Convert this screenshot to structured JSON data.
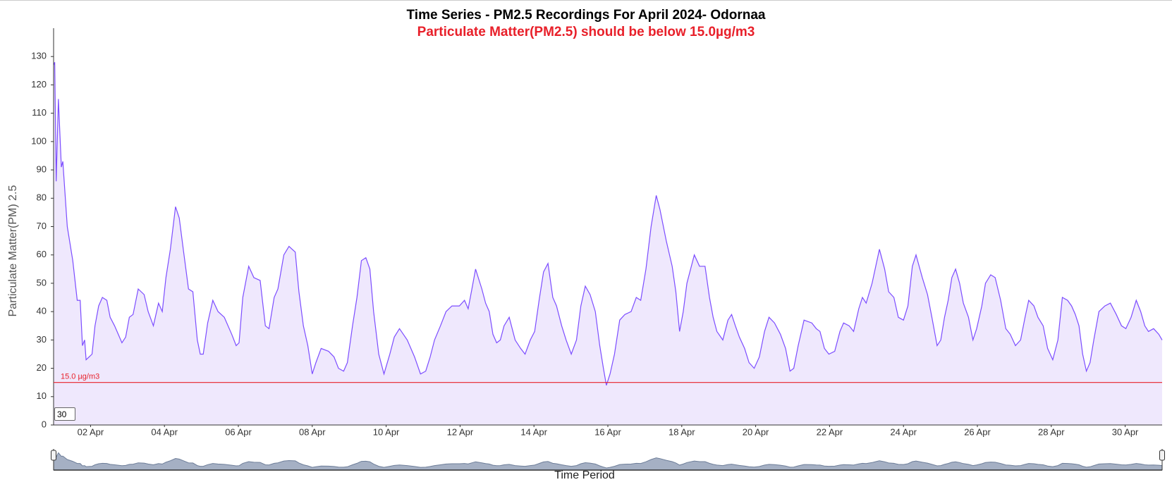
{
  "chart_data": {
    "type": "area",
    "title": "Time Series - PM2.5 Recordings For April 2024- Odornaa",
    "subtitle": "Particulate Matter(PM2.5) should be below 15.0µg/m3",
    "y_label": "Particulate Matter(PM) 2.5",
    "x_label": "Time Period",
    "threshold": {
      "value": 15,
      "label": "15.0 µg/m3"
    },
    "range_input": "30",
    "color": "#7c4dff",
    "fill_color": "#efe8fd",
    "threshold_color": "#e8202a",
    "navigator_color": "#a5b0c4",
    "ylim": [
      0,
      140
    ],
    "yticks": [
      0,
      10,
      20,
      30,
      40,
      50,
      60,
      70,
      80,
      90,
      100,
      110,
      120,
      130
    ],
    "xlim": [
      1,
      31
    ],
    "xticks": [
      {
        "value": 2,
        "label": "02 Apr"
      },
      {
        "value": 4,
        "label": "04 Apr"
      },
      {
        "value": 6,
        "label": "06 Apr"
      },
      {
        "value": 8,
        "label": "08 Apr"
      },
      {
        "value": 10,
        "label": "10 Apr"
      },
      {
        "value": 12,
        "label": "12 Apr"
      },
      {
        "value": 14,
        "label": "14 Apr"
      },
      {
        "value": 16,
        "label": "16 Apr"
      },
      {
        "value": 18,
        "label": "18 Apr"
      },
      {
        "value": 20,
        "label": "20 Apr"
      },
      {
        "value": 22,
        "label": "22 Apr"
      },
      {
        "value": 24,
        "label": "24 Apr"
      },
      {
        "value": 26,
        "label": "26 Apr"
      },
      {
        "value": 28,
        "label": "28 Apr"
      },
      {
        "value": 30,
        "label": "30 Apr"
      }
    ],
    "grid": false,
    "x": [
      1.0,
      1.03,
      1.07,
      1.13,
      1.21,
      1.25,
      1.37,
      1.52,
      1.64,
      1.72,
      1.78,
      1.84,
      1.88,
      2.04,
      2.12,
      2.22,
      2.32,
      2.44,
      2.53,
      2.65,
      2.75,
      2.85,
      2.95,
      3.05,
      3.15,
      3.29,
      3.45,
      3.56,
      3.7,
      3.84,
      3.94,
      4.04,
      4.16,
      4.3,
      4.4,
      4.51,
      4.65,
      4.77,
      4.89,
      4.97,
      5.05,
      5.17,
      5.31,
      5.45,
      5.62,
      5.82,
      5.94,
      6.02,
      6.12,
      6.28,
      6.42,
      6.59,
      6.73,
      6.83,
      6.97,
      7.07,
      7.23,
      7.37,
      7.54,
      7.64,
      7.76,
      7.88,
      8.0,
      8.1,
      8.24,
      8.44,
      8.59,
      8.71,
      8.85,
      8.95,
      9.09,
      9.21,
      9.33,
      9.45,
      9.56,
      9.66,
      9.8,
      9.94,
      10.1,
      10.22,
      10.36,
      10.57,
      10.77,
      10.93,
      11.07,
      11.19,
      11.31,
      11.47,
      11.62,
      11.78,
      11.98,
      12.12,
      12.22,
      12.32,
      12.42,
      12.59,
      12.69,
      12.79,
      12.89,
      12.99,
      13.09,
      13.19,
      13.33,
      13.49,
      13.64,
      13.76,
      13.9,
      14.02,
      14.14,
      14.26,
      14.38,
      14.51,
      14.61,
      14.75,
      14.87,
      15.01,
      15.15,
      15.27,
      15.39,
      15.52,
      15.66,
      15.78,
      15.88,
      15.96,
      16.06,
      16.18,
      16.32,
      16.46,
      16.63,
      16.77,
      16.89,
      17.03,
      17.17,
      17.31,
      17.41,
      17.58,
      17.74,
      17.84,
      17.94,
      18.04,
      18.14,
      18.34,
      18.48,
      18.63,
      18.75,
      18.85,
      18.95,
      19.11,
      19.25,
      19.35,
      19.45,
      19.56,
      19.7,
      19.82,
      19.96,
      20.1,
      20.24,
      20.36,
      20.51,
      20.67,
      20.81,
      20.93,
      21.03,
      21.15,
      21.31,
      21.52,
      21.64,
      21.74,
      21.86,
      21.98,
      22.14,
      22.28,
      22.38,
      22.53,
      22.65,
      22.79,
      22.89,
      22.99,
      23.15,
      23.25,
      23.35,
      23.49,
      23.6,
      23.74,
      23.86,
      24.0,
      24.12,
      24.24,
      24.34,
      24.51,
      24.65,
      24.77,
      24.91,
      25.01,
      25.11,
      25.21,
      25.31,
      25.41,
      25.52,
      25.62,
      25.76,
      25.88,
      25.98,
      26.12,
      26.22,
      26.36,
      26.48,
      26.63,
      26.77,
      26.89,
      27.03,
      27.17,
      27.29,
      27.39,
      27.53,
      27.64,
      27.78,
      27.9,
      28.04,
      28.18,
      28.3,
      28.44,
      28.55,
      28.65,
      28.75,
      28.85,
      28.95,
      29.05,
      29.15,
      29.29,
      29.45,
      29.6,
      29.76,
      29.9,
      30.02,
      30.16,
      30.3,
      30.42,
      30.53,
      30.63,
      30.77,
      30.91,
      31.0
    ],
    "values": [
      127,
      128,
      86,
      115,
      91,
      93,
      70,
      58,
      44,
      44,
      28,
      30,
      23,
      25,
      35,
      42,
      45,
      44,
      38,
      35,
      32,
      29,
      31,
      38,
      39,
      48,
      46,
      40,
      35,
      43,
      40,
      52,
      62,
      77,
      73,
      62,
      48,
      47,
      30,
      25,
      25,
      36,
      44,
      40,
      38,
      32,
      28,
      29,
      45,
      56,
      52,
      51,
      35,
      34,
      45,
      48,
      60,
      63,
      61,
      47,
      35,
      28,
      18,
      22,
      27,
      26,
      24,
      20,
      19,
      22,
      35,
      45,
      58,
      59,
      55,
      40,
      25,
      18,
      25,
      31,
      34,
      30,
      24,
      18,
      19,
      24,
      30,
      35,
      40,
      42,
      42,
      44,
      41,
      48,
      55,
      48,
      43,
      40,
      32,
      29,
      30,
      35,
      38,
      30,
      27,
      25,
      30,
      33,
      44,
      54,
      57,
      45,
      42,
      35,
      30,
      25,
      30,
      42,
      49,
      46,
      40,
      28,
      20,
      14,
      18,
      25,
      37,
      39,
      40,
      45,
      44,
      55,
      70,
      81,
      76,
      65,
      56,
      47,
      33,
      40,
      50,
      60,
      56,
      56,
      45,
      38,
      33,
      30,
      37,
      39,
      35,
      31,
      27,
      22,
      20,
      24,
      33,
      38,
      36,
      32,
      27,
      19,
      20,
      28,
      37,
      36,
      34,
      33,
      27,
      25,
      26,
      33,
      36,
      35,
      33,
      41,
      45,
      43,
      50,
      56,
      62,
      55,
      47,
      45,
      38,
      37,
      42,
      56,
      60,
      52,
      46,
      38,
      28,
      30,
      38,
      44,
      52,
      55,
      50,
      43,
      38,
      30,
      34,
      42,
      50,
      53,
      52,
      44,
      34,
      32,
      28,
      30,
      38,
      44,
      42,
      38,
      35,
      27,
      23,
      30,
      45,
      44,
      42,
      39,
      35,
      25,
      19,
      22,
      30,
      40,
      42,
      43,
      39,
      35,
      34,
      38,
      44,
      40,
      35,
      33,
      34,
      32,
      30
    ]
  }
}
